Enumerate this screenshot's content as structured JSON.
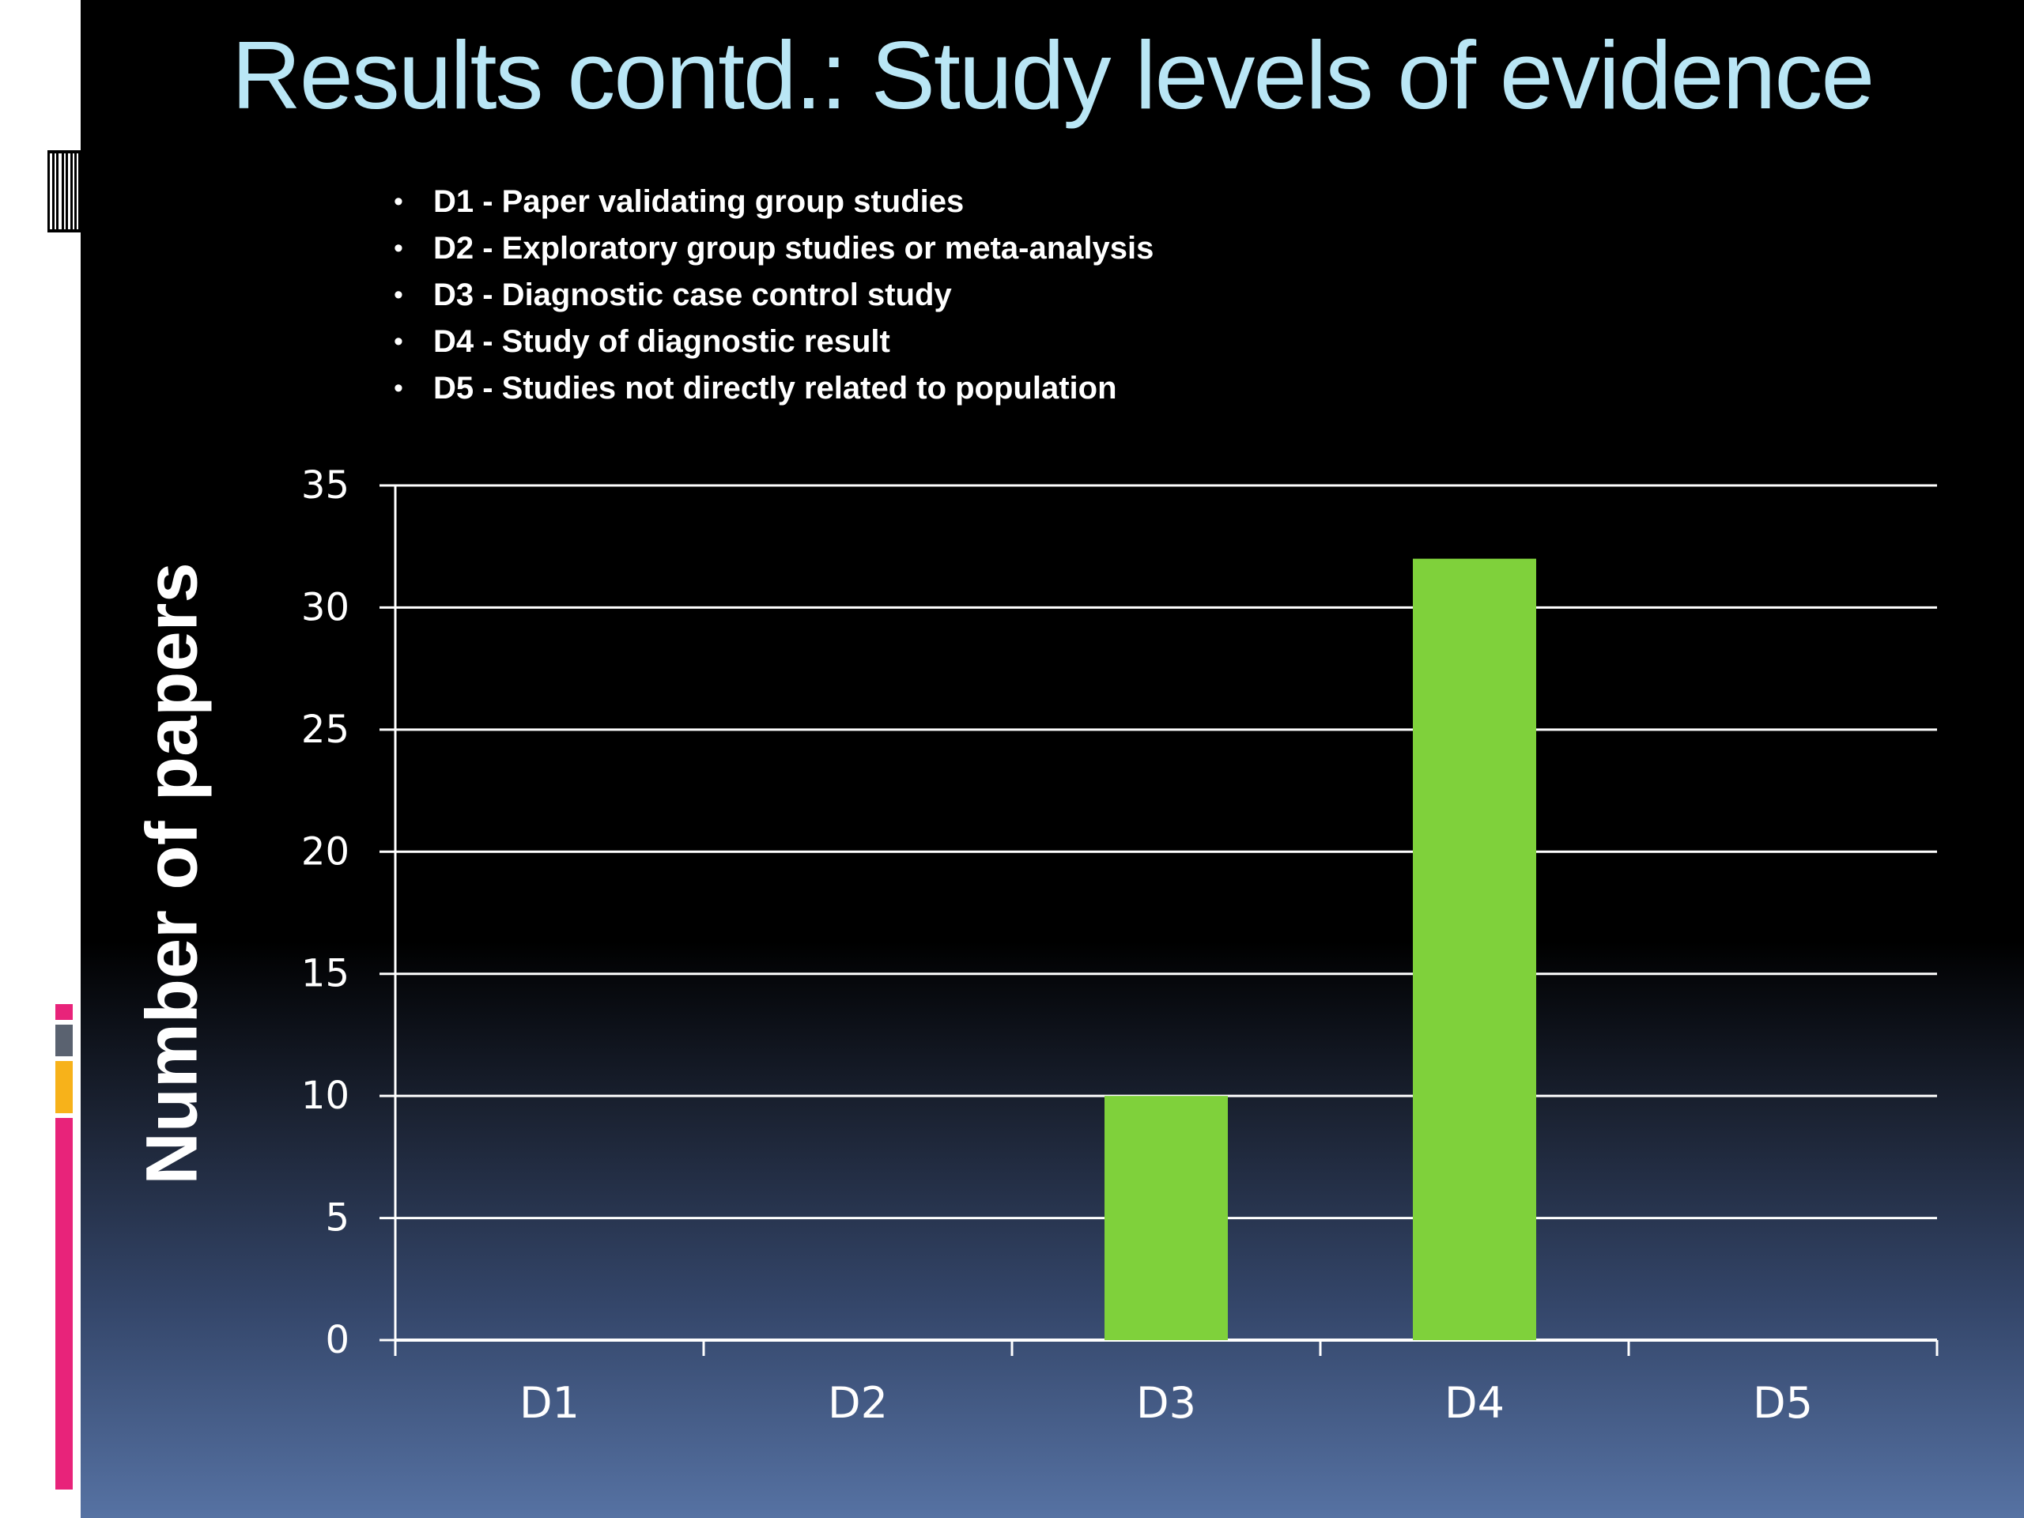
{
  "slide": {
    "title": "Results contd.: Study levels of evidence",
    "definitions": [
      {
        "text": "D1 - Paper validating group studies"
      },
      {
        "text": "D2 - Exploratory group studies or meta-analysis"
      },
      {
        "text": "D3 - Diagnostic case control study"
      },
      {
        "text": "D4 - Study of diagnostic result"
      },
      {
        "text": "D5 - Studies not directly related to population"
      }
    ],
    "accent_colors": [
      "#e8237a",
      "#5a6270",
      "#f7b21a"
    ]
  },
  "chart_data": {
    "type": "bar",
    "categories": [
      "D1",
      "D2",
      "D3",
      "D4",
      "D5"
    ],
    "values": [
      0,
      0,
      10,
      32,
      0
    ],
    "ylabel": "Number of papers",
    "xlabel": "",
    "ylim": [
      0,
      35
    ],
    "yticks": [
      0,
      5,
      10,
      15,
      20,
      25,
      30,
      35
    ],
    "ytick_labels": [
      "0",
      "5",
      "10",
      "15",
      "20",
      "25",
      "30",
      "35"
    ],
    "grid": true,
    "bar_color": "#7fd13b",
    "gridline_color": "#ffffff"
  }
}
